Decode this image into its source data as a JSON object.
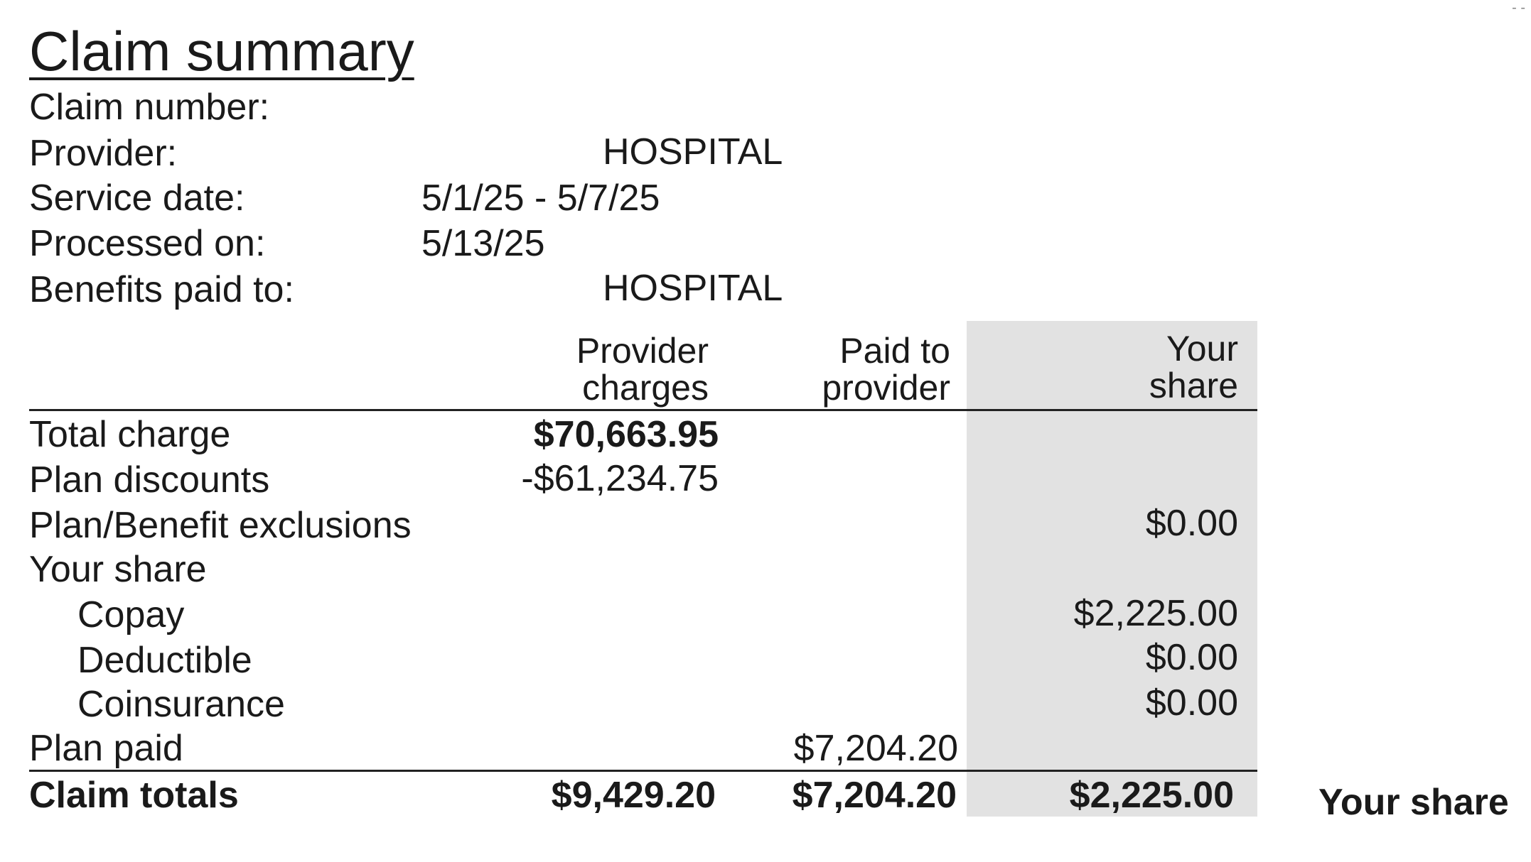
{
  "title": "Claim summary",
  "info": {
    "claim_number_label": "Claim number:",
    "claim_number_value": "",
    "provider_label": "Provider:",
    "provider_value": "HOSPITAL",
    "service_date_label": "Service date:",
    "service_date_value": "5/1/25 - 5/7/25",
    "processed_on_label": "Processed on:",
    "processed_on_value": "5/13/25",
    "benefits_paid_to_label": "Benefits paid to:",
    "benefits_paid_to_value": "HOSPITAL"
  },
  "table": {
    "headers": {
      "provider_charges_1": "Provider",
      "provider_charges_2": "charges",
      "paid_to_provider_1": "Paid to",
      "paid_to_provider_2": "provider",
      "your_share_1": "Your",
      "your_share_2": "share"
    },
    "rows": {
      "total_charge": {
        "label": "Total charge",
        "provider_charges": "$70,663.95"
      },
      "plan_discounts": {
        "label": "Plan discounts",
        "provider_charges": "-$61,234.75"
      },
      "exclusions": {
        "label": "Plan/Benefit exclusions",
        "your_share": "$0.00"
      },
      "your_share": {
        "label": "Your share"
      },
      "copay": {
        "label": "Copay",
        "your_share": "$2,225.00"
      },
      "deductible": {
        "label": "Deductible",
        "your_share": "$0.00"
      },
      "coinsurance": {
        "label": "Coinsurance",
        "your_share": "$0.00"
      },
      "plan_paid": {
        "label": "Plan paid",
        "paid_to_provider": "$7,204.20"
      }
    },
    "totals": {
      "label": "Claim totals",
      "provider_charges": "$9,429.20",
      "paid_to_provider": "$7,204.20",
      "your_share": "$2,225.00"
    }
  },
  "side_label": "Your share",
  "colors": {
    "shade": "#e2e2e2",
    "text": "#1a1a1a"
  }
}
